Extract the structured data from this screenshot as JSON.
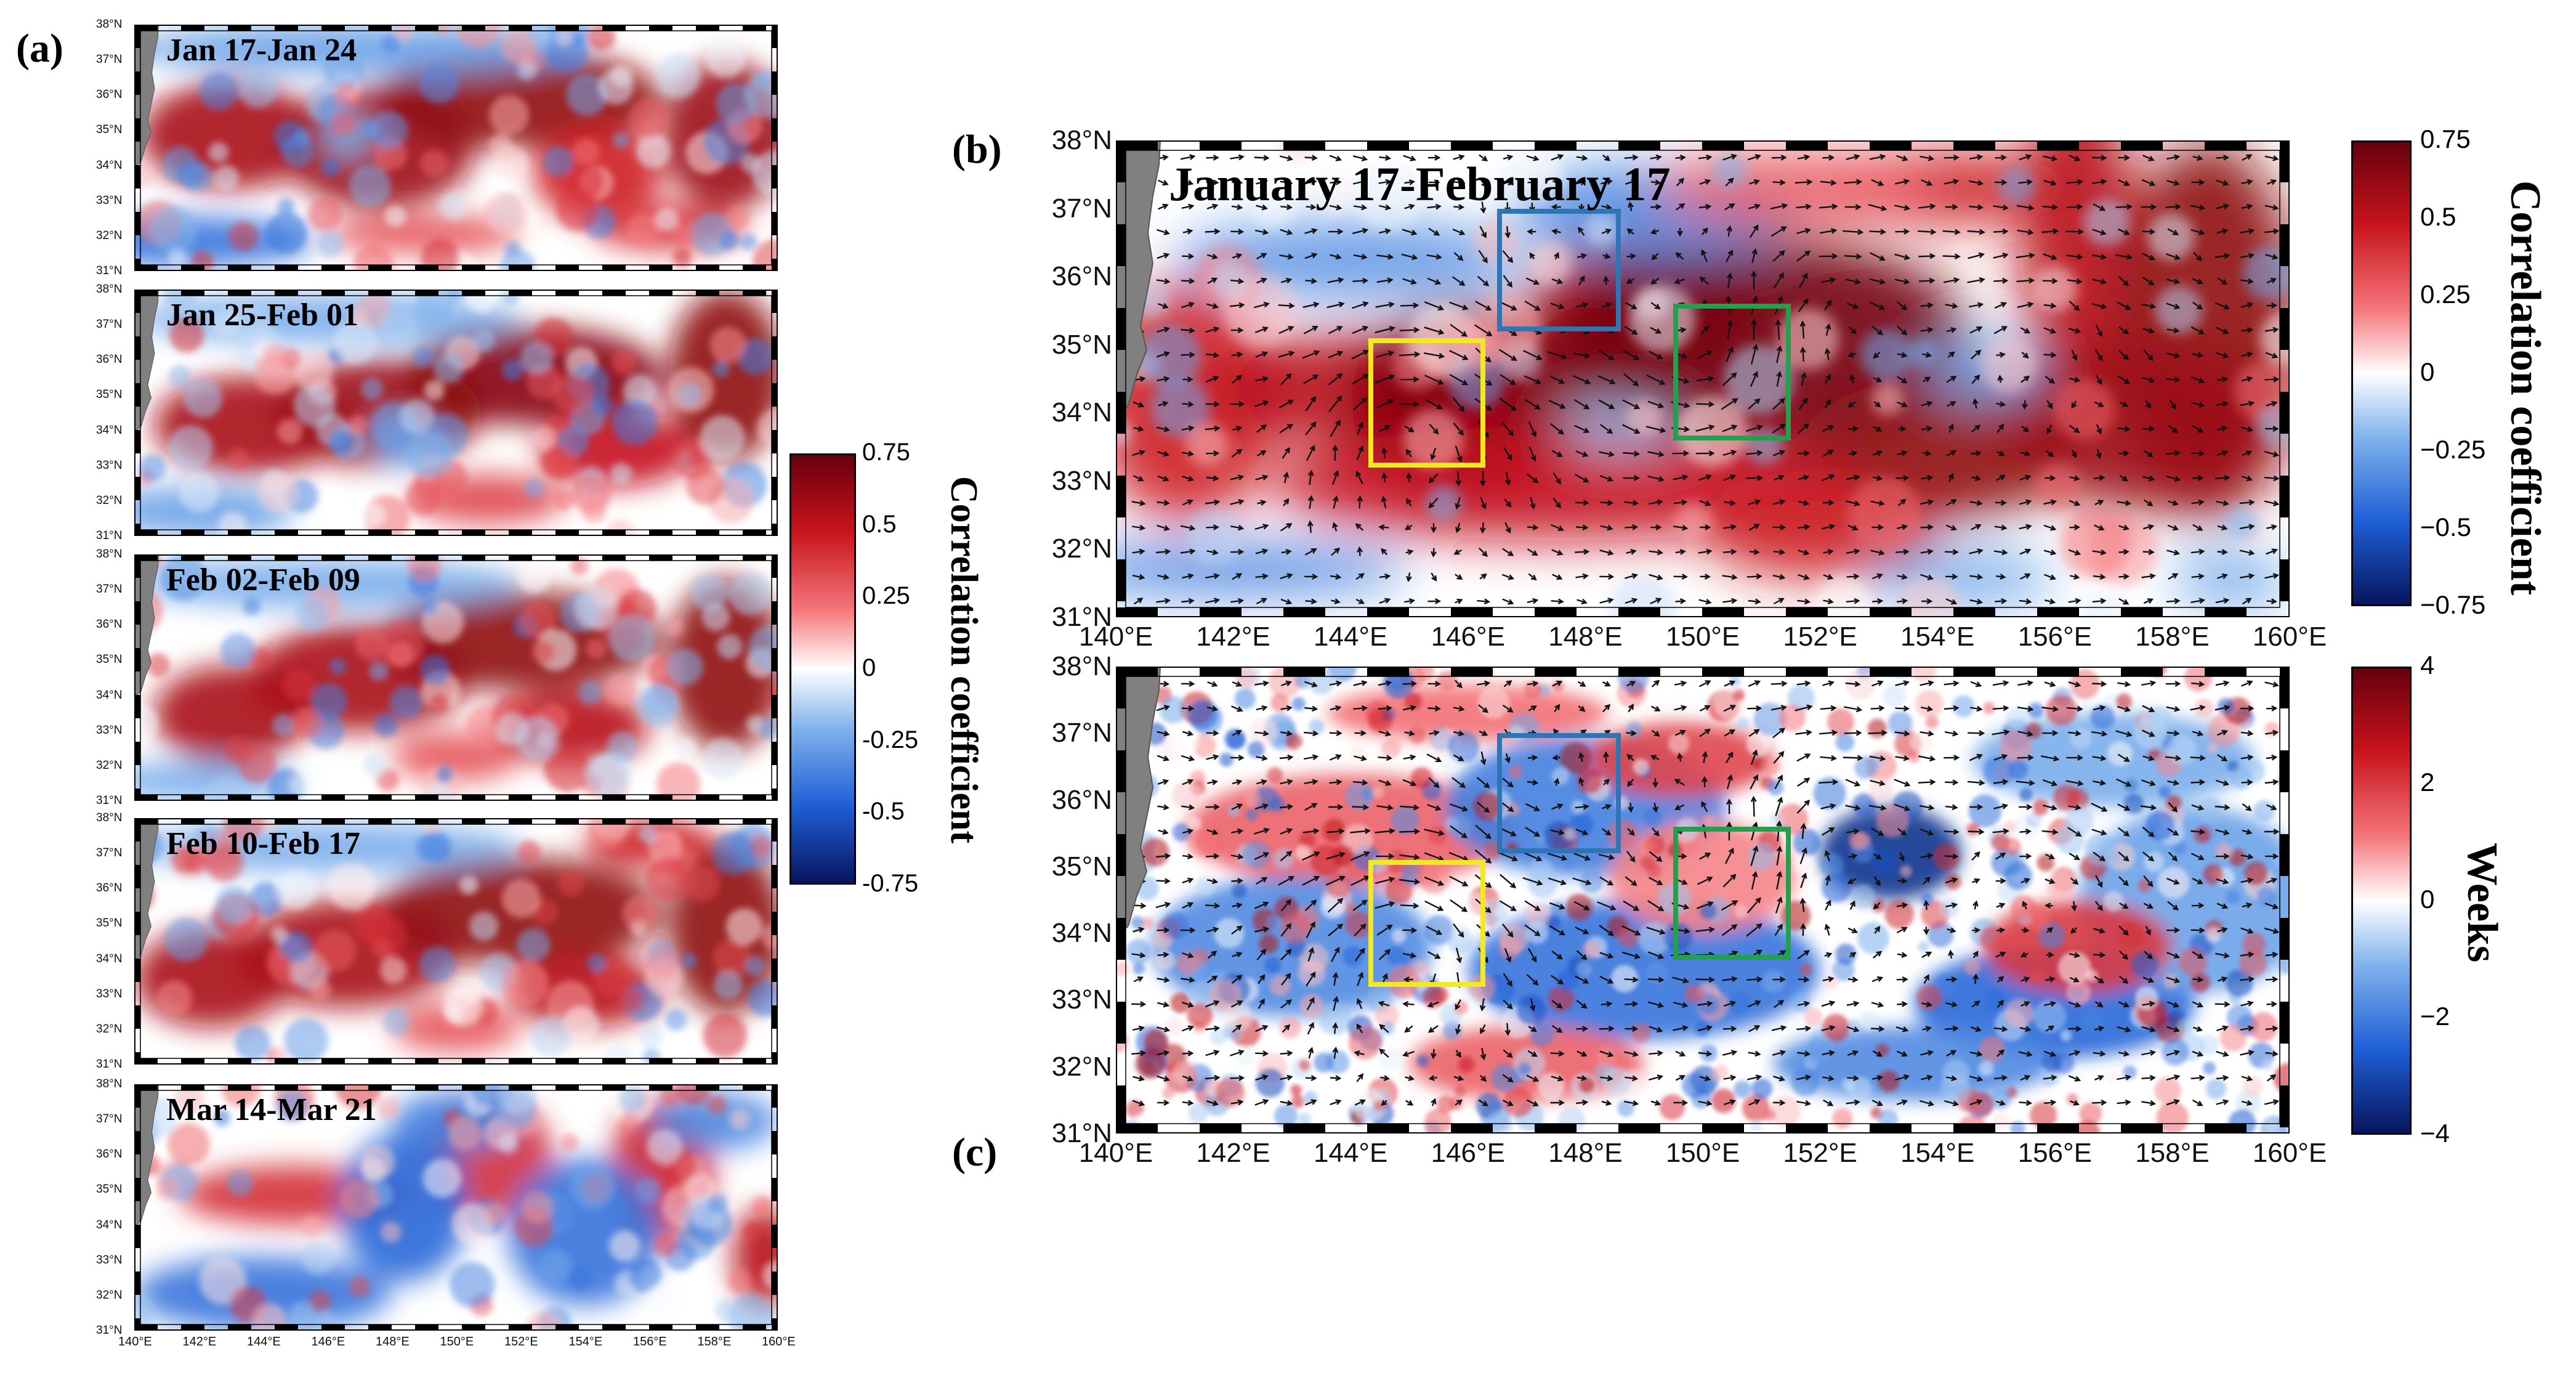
{
  "panel_labels": {
    "a": "(a)",
    "b": "(b)",
    "c": "(c)"
  },
  "panel_a": {
    "titles": [
      "Jan 17-Jan 24",
      "Jan 25-Feb 01",
      "Feb 02-Feb 09",
      "Feb 10-Feb 17",
      "Mar 14-Mar 21"
    ],
    "lat_ticks": [
      "38°N",
      "37°N",
      "36°N",
      "35°N",
      "34°N",
      "33°N",
      "32°N",
      "31°N"
    ],
    "lon_ticks": [
      "140°E",
      "142°E",
      "144°E",
      "146°E",
      "148°E",
      "150°E",
      "152°E",
      "154°E",
      "156°E",
      "158°E",
      "160°E"
    ]
  },
  "colorbar_a": {
    "title": "Correlation coefficient",
    "ticks": [
      "0.75",
      "0.5",
      "0.25",
      "0",
      "-0.25",
      "-0.5",
      "-0.75"
    ],
    "range": [
      -0.75,
      0.75
    ]
  },
  "panel_b": {
    "title": "January 17-February 17",
    "lat_ticks": [
      "38°N",
      "37°N",
      "36°N",
      "35°N",
      "34°N",
      "33°N",
      "32°N",
      "31°N"
    ],
    "lon_ticks": [
      "140°E",
      "142°E",
      "144°E",
      "146°E",
      "148°E",
      "150°E",
      "152°E",
      "154°E",
      "156°E",
      "158°E",
      "160°E"
    ]
  },
  "colorbar_b": {
    "title": "Correlation coefficient",
    "ticks": [
      "0.75",
      "0.5",
      "0.25",
      "0",
      "−0.25",
      "−0.5",
      "−0.75"
    ],
    "range": [
      -0.75,
      0.75
    ]
  },
  "panel_c": {
    "lat_ticks": [
      "38°N",
      "37°N",
      "36°N",
      "35°N",
      "34°N",
      "33°N",
      "32°N",
      "31°N"
    ],
    "lon_ticks": [
      "140°E",
      "142°E",
      "144°E",
      "146°E",
      "148°E",
      "150°E",
      "152°E",
      "154°E",
      "156°E",
      "158°E",
      "160°E"
    ]
  },
  "colorbar_c": {
    "title": "Weeks",
    "ticks": [
      "4",
      "2",
      "0",
      "−2",
      "−4"
    ],
    "range": [
      -4,
      4
    ]
  },
  "region_boxes": {
    "yellow": {
      "color": "#f2ea1e",
      "lon": [
        144.3,
        146.3
      ],
      "lat": [
        33.2,
        35.1
      ]
    },
    "blue": {
      "color": "#2e75b6",
      "lon": [
        146.5,
        148.6
      ],
      "lat": [
        35.2,
        37.0
      ]
    },
    "green": {
      "color": "#22a04b",
      "lon": [
        149.5,
        151.5
      ],
      "lat": [
        33.6,
        35.6
      ]
    }
  },
  "colors": {
    "land": "#808080",
    "arrow": "#111111"
  }
}
